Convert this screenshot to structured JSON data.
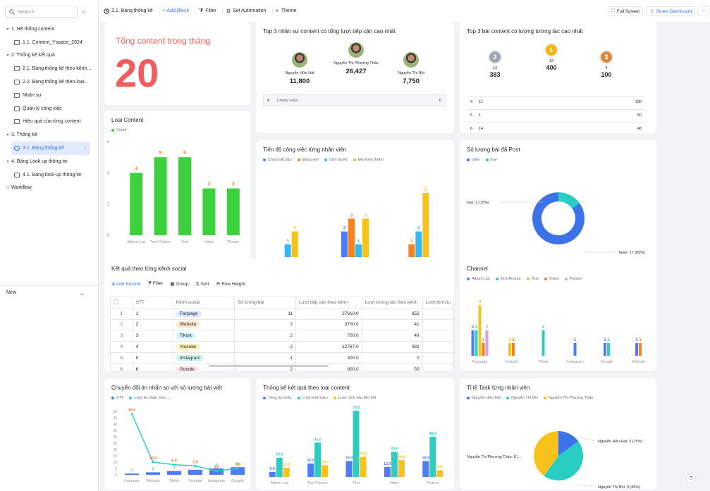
{
  "sidebar": {
    "search_placeholder": "Search",
    "new_label": "New",
    "items": [
      {
        "label": "1. Hệ thống content",
        "level": 0,
        "caret": "▾"
      },
      {
        "label": "1.1. Content_Yspace_2024",
        "level": 1
      },
      {
        "label": "2. Thống kê kết quả",
        "level": 0,
        "caret": "▾"
      },
      {
        "label": "2.1. Bảng thống kê theo kênh...",
        "level": 1
      },
      {
        "label": "2.2. Bảng thống kê theo loại...",
        "level": 1
      },
      {
        "label": "Nhân sự",
        "level": 1
      },
      {
        "label": "Quản lý công việc",
        "level": 1
      },
      {
        "label": "Hiệu quả của từng content",
        "level": 1
      },
      {
        "label": "3. Thống kê",
        "level": 0,
        "caret": "▾"
      },
      {
        "label": "3.1. Bảng thống kê",
        "level": 1,
        "active": true
      },
      {
        "label": "4. Bảng Look up thông tin",
        "level": 0,
        "caret": "▾"
      },
      {
        "label": "4.1. Bảng look-up thông tin",
        "level": 1
      },
      {
        "label": "Workflow",
        "level": 0
      }
    ]
  },
  "toolbar": {
    "title": "3.1. Bảng thống kê",
    "add_block": "+ Add Block",
    "filter": "Filter",
    "automation": "Set Automation",
    "theme": "Theme",
    "fullscreen": "Full Screen",
    "share": "Share Dashboard",
    "more": "···"
  },
  "total": {
    "title": "Tổng content trong tháng",
    "value": "20"
  },
  "top3_people": {
    "title": "Top 3 nhân sự content có tổng lượt tiếp cận cao nhất",
    "people": [
      {
        "name": "Nguyễn Hữu Hải",
        "value": "11,800"
      },
      {
        "name": "Nguyễn Thị Phương Thảo",
        "value": "26,427"
      },
      {
        "name": "Nguyễn Thị Nhi",
        "value": "7,750"
      }
    ],
    "row": {
      "rank": "4",
      "label": "Empty value",
      "value": "0"
    }
  },
  "top3_posts": {
    "title": "Top 3 bài content có lượng tương tác cao nhất",
    "medals": [
      {
        "rank": "2",
        "id": "13",
        "value": "383",
        "color": "#9ea7b4"
      },
      {
        "rank": "1",
        "id": "12",
        "value": "400",
        "color": "#f5b50a"
      },
      {
        "rank": "3",
        "id": "4",
        "value": "100",
        "color": "#d98842"
      }
    ],
    "rows": [
      {
        "rank": "4",
        "id": "11",
        "value": "100"
      },
      {
        "rank": "5",
        "id": "1",
        "value": "50"
      },
      {
        "rank": "6",
        "id": "14",
        "value": "48"
      }
    ]
  },
  "content_type": {
    "title": "Loại Content",
    "legend": "Count",
    "color": "#3dd13d",
    "chart_data": {
      "type": "bar",
      "categories": [
        "Album List",
        "Text-Picture",
        "Text",
        "Video",
        "Picture"
      ],
      "values": [
        4,
        5,
        5,
        3,
        3
      ],
      "ylim": [
        0,
        6
      ],
      "yticks": [
        0,
        2,
        4,
        6
      ]
    }
  },
  "progress": {
    "title": "Tiến độ công việc từng nhân viên",
    "chart_data": {
      "type": "bar",
      "categories": [
        "Nguyễn Hữu Hải",
        "Nguyễn Thị Nhi",
        "Nguyễn Thị Phương Thảo"
      ],
      "series": [
        {
          "name": "Chưa bắt đầu",
          "color": "#4f7cf5",
          "values": [
            0,
            2,
            0
          ]
        },
        {
          "name": "Đang làm",
          "color": "#f5821f",
          "values": [
            0,
            3,
            1
          ]
        },
        {
          "name": "Chờ duyệt",
          "color": "#36b7ef",
          "values": [
            1,
            1,
            2
          ]
        },
        {
          "name": "Đã hoàn thành",
          "color": "#f7c31a",
          "values": [
            2,
            3,
            5
          ]
        }
      ],
      "ylim": [
        0,
        5
      ]
    }
  },
  "posted": {
    "title": "Số lượng bài đã Post",
    "chart_data": {
      "type": "pie",
      "labels": [
        "false",
        "true"
      ],
      "values": [
        17,
        3
      ],
      "colors": [
        "#3d73e8",
        "#29cdc4"
      ],
      "annotations": [
        "false: 17 (85%)",
        "true: 3 (15%)"
      ]
    }
  },
  "social": {
    "title": "Kết quả theo từng kênh social",
    "add": "Add Record",
    "filter": "Filter",
    "group": "Group",
    "sort": "Sort",
    "rowheight": "Row Height",
    "columns": [
      "STT",
      "Kênh social",
      "Số lượng bài",
      "Lượt tiếp cận theo kênh",
      "Lượt tương tác theo kênh",
      "Lượt bình lu"
    ],
    "rows": [
      {
        "n": "1",
        "stt": "1",
        "channel": "Fanpage",
        "tagc": "#dce9ff",
        "posts": "11",
        "reach": "27610.0",
        "inter": "652"
      },
      {
        "n": "2",
        "stt": "2",
        "channel": "Website",
        "tagc": "#ffe4cc",
        "posts": "2",
        "reach": "3700.0",
        "inter": "41"
      },
      {
        "n": "3",
        "stt": "3",
        "channel": "Tiktok",
        "tagc": "#d3f0ff",
        "posts": "2",
        "reach": "700.0",
        "inter": "49"
      },
      {
        "n": "4",
        "stt": "4",
        "channel": "Youtube",
        "tagc": "#fff1b8",
        "posts": "2",
        "reach": "12767.0",
        "inter": "483"
      },
      {
        "n": "5",
        "stt": "5",
        "channel": "Instagram",
        "tagc": "#d1f5ee",
        "posts": "1",
        "reach": "300.0",
        "inter": "0"
      },
      {
        "n": "6",
        "stt": "6",
        "channel": "Google",
        "tagc": "#ffe0e0",
        "posts": "2",
        "reach": "900.0",
        "inter": "50"
      }
    ]
  },
  "channel": {
    "title": "Channel",
    "chart_data": {
      "type": "bar",
      "categories": [
        "Fanpage",
        "Youtube",
        "Tiktok",
        "Instagram",
        "Google",
        "Website"
      ],
      "series": [
        {
          "name": "Album List",
          "color": "#4f7cf5",
          "values": [
            2,
            0,
            0,
            1,
            1,
            1
          ]
        },
        {
          "name": "Text-Picture",
          "color": "#2fcdc1",
          "values": [
            2,
            0,
            2,
            0,
            1,
            0
          ]
        },
        {
          "name": "Text",
          "color": "#f7c31a",
          "values": [
            4,
            1,
            0,
            0,
            0,
            0
          ]
        },
        {
          "name": "Video",
          "color": "#f5821f",
          "values": [
            1,
            1,
            0,
            0,
            0,
            1
          ]
        },
        {
          "name": "Picture",
          "color": "#d79cf0",
          "values": [
            2,
            0,
            0,
            0,
            0,
            0
          ]
        }
      ],
      "ylim": [
        0,
        5
      ]
    }
  },
  "conversion": {
    "title": "Chuyển đổi tin nhắn so với số lượng bài viết",
    "chart_data": {
      "type": "bar+line",
      "categories": [
        "Fanpage",
        "Website",
        "Tiktok",
        "Youtube",
        "Instagram",
        "Google"
      ],
      "series": [
        {
          "name": "STT",
          "color": "#4f7cf5",
          "values": [
            1,
            2,
            3,
            4,
            5,
            6
          ]
        },
        {
          "name": "Lượt tin nhắn theo ...",
          "color": "#2fcdc1",
          "values": [
            48,
            10,
            8,
            7,
            3,
            5
          ]
        }
      ],
      "labels_line": [
        "48.0",
        "10.0",
        "8.0",
        "7.0",
        "3.0",
        "5.0"
      ],
      "ylim": [
        0,
        50
      ],
      "yticks": [
        0,
        5,
        10,
        15,
        20,
        25,
        30,
        35,
        40,
        45,
        50
      ]
    }
  },
  "result_type": {
    "title": "Thống kê kết quả theo loại content",
    "chart_data": {
      "type": "bar",
      "categories": [
        "Album List",
        "Text-Picture",
        "Text",
        "Video",
        "Picture"
      ],
      "series": [
        {
          "name": "Tổng tin nhắn",
          "color": "#4f7cf5",
          "values": [
            6,
            16,
            19,
            12,
            19
          ]
        },
        {
          "name": "Lượt bình luận",
          "color": "#2fcdc1",
          "values": [
            23,
            41,
            79,
            30,
            48
          ]
        },
        {
          "name": "Lượt click vào liên kết",
          "color": "#f7c31a",
          "values": [
            11,
            14,
            24,
            20,
            8
          ]
        }
      ],
      "labels": [
        [
          "6.0",
          "23.0",
          "11.0"
        ],
        [
          "16.0",
          "41.0",
          "14.0"
        ],
        [
          "19.0",
          "79.0",
          "24.0"
        ],
        [
          "12.0",
          "30.0",
          "20.0"
        ],
        [
          "19.0",
          "48.0",
          "8.0"
        ]
      ],
      "ylim": [
        0,
        80
      ]
    }
  },
  "task_ratio": {
    "title": "Tỉ lệ Task từng nhân viên",
    "chart_data": {
      "type": "pie",
      "labels": [
        "Nguyễn Hữu Hải",
        "Nguyễn Thị Nhi",
        "Nguyễn Thị Phương Thảo"
      ],
      "values": [
        3,
        9,
        8
      ],
      "colors": [
        "#3d73e8",
        "#29cdc4",
        "#f7c31a"
      ],
      "annotations": [
        "Nguyễn Hữu Hải: 3 (15%)",
        "Nguyễn Thị Nhi: 9 (45%)",
        "Nguyễn Thị Phương Thảo: 8 (..."
      ]
    }
  },
  "help": "?"
}
